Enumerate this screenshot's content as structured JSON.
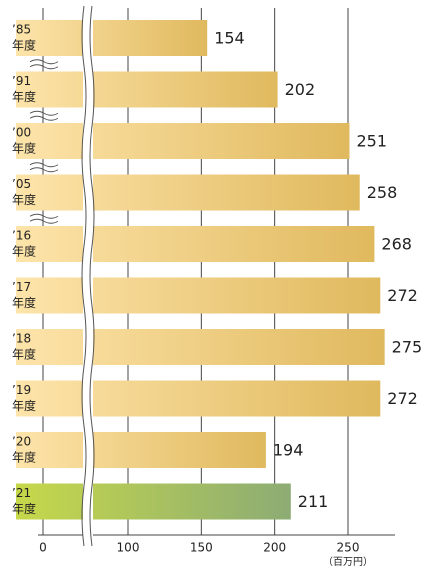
{
  "chart_data": {
    "type": "bar",
    "orientation": "horizontal",
    "categories": [
      "’85",
      "’91",
      "’00",
      "’05",
      "’16",
      "’17",
      "’18",
      "’19",
      "’20",
      "’21"
    ],
    "category_suffix": "年度",
    "values": [
      154,
      202,
      251,
      258,
      268,
      272,
      275,
      272,
      194,
      211
    ],
    "color": [
      "#fde4aa",
      "#e0b95e"
    ],
    "highlight": "’21",
    "highlight_color": [
      "#c6d84a",
      "#8dac74"
    ],
    "xlim": [
      0,
      250
    ],
    "xticks": [
      0,
      100,
      150,
      200,
      250
    ],
    "x_unit": "（百万円）",
    "grid": true,
    "axis_break": true
  }
}
